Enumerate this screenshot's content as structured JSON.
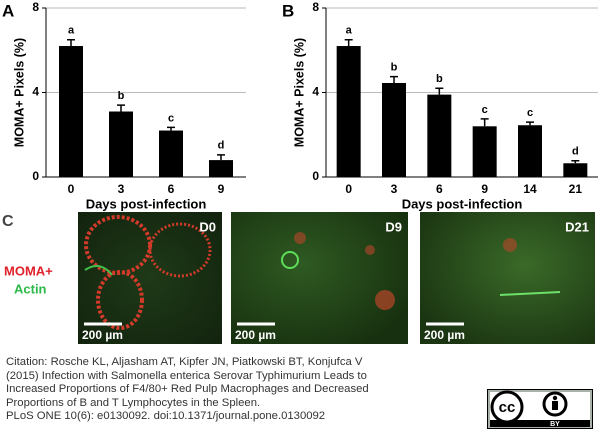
{
  "chart_data": [
    {
      "type": "bar",
      "panel": "A",
      "categories": [
        "0",
        "3",
        "6",
        "9"
      ],
      "values": [
        6.2,
        3.1,
        2.2,
        0.8
      ],
      "errors": [
        0.3,
        0.3,
        0.15,
        0.25
      ],
      "annotations": [
        "a",
        "b",
        "c",
        "d"
      ],
      "ylim": [
        0,
        8
      ],
      "yticks": [
        0,
        4,
        8
      ],
      "ylabel": "MOMA+ Pixels (%)",
      "xlabel": "Days post-infection",
      "color": "#000000",
      "grid": true
    },
    {
      "type": "bar",
      "panel": "B",
      "categories": [
        "0",
        "3",
        "6",
        "9",
        "14",
        "21"
      ],
      "values": [
        6.2,
        4.45,
        3.9,
        2.4,
        2.45,
        0.65
      ],
      "errors": [
        0.3,
        0.3,
        0.3,
        0.35,
        0.15,
        0.12
      ],
      "annotations": [
        "a",
        "b",
        "b",
        "c",
        "c",
        "d"
      ],
      "ylim": [
        0,
        8
      ],
      "yticks": [
        0,
        4,
        8
      ],
      "ylabel": "MOMA+ Pixels (%)",
      "xlabel": "Days post-infection",
      "color": "#000000",
      "grid": true
    }
  ],
  "panel_c": {
    "label": "C",
    "stains": [
      "MOMA+",
      "Actin"
    ],
    "images": [
      {
        "label": "D0",
        "scale": "200 µm"
      },
      {
        "label": "D9",
        "scale": "200 µm"
      },
      {
        "label": "D21",
        "scale": "200 µm"
      }
    ]
  },
  "citation": [
    "Citation: Rosche KL, Aljasham AT, Kipfer JN, Piatkowski BT, Konjufca V",
    "(2015) Infection with Salmonella enterica Serovar Typhimurium Leads to",
    "Increased Proportions of F4/80+ Red Pulp Macrophages and Decreased",
    "Proportions of B and T Lymphocytes in the Spleen.",
    "PLoS ONE 10(6): e0130092. doi:10.1371/journal.pone.0130092"
  ],
  "license": {
    "cc": "cc",
    "by": "BY"
  }
}
